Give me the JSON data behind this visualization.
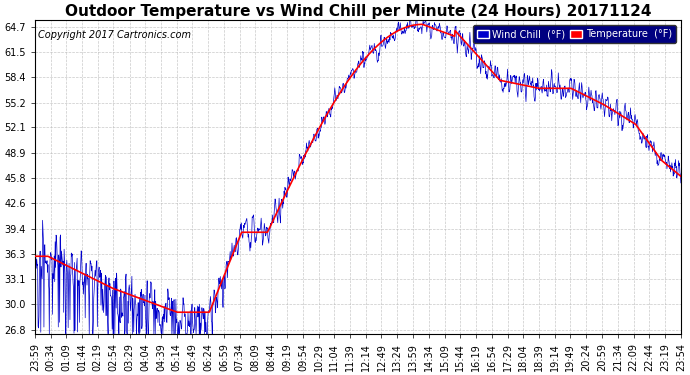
{
  "title": "Outdoor Temperature vs Wind Chill per Minute (24 Hours) 20171124",
  "copyright": "Copyright 2017 Cartronics.com",
  "yticks": [
    26.8,
    30.0,
    33.1,
    36.3,
    39.4,
    42.6,
    45.8,
    48.9,
    52.1,
    55.2,
    58.4,
    61.5,
    64.7
  ],
  "ylim_min": 26.3,
  "ylim_max": 65.5,
  "temp_color": "#ff0000",
  "wind_chill_color": "#0000cc",
  "bg_color": "#ffffff",
  "grid_color": "#bbbbbb",
  "legend_bg": "#000080",
  "title_fontsize": 11,
  "copyright_fontsize": 7,
  "tick_fontsize": 7,
  "xtick_labels": [
    "23:59",
    "00:34",
    "01:09",
    "01:44",
    "02:19",
    "02:54",
    "03:29",
    "04:04",
    "04:39",
    "05:14",
    "05:49",
    "06:24",
    "06:59",
    "07:34",
    "08:09",
    "08:44",
    "09:19",
    "09:54",
    "10:29",
    "11:04",
    "11:39",
    "12:14",
    "12:49",
    "13:24",
    "13:59",
    "14:34",
    "15:09",
    "15:44",
    "16:19",
    "16:54",
    "17:29",
    "18:04",
    "18:39",
    "19:14",
    "19:49",
    "20:24",
    "20:59",
    "21:34",
    "22:09",
    "22:44",
    "23:19",
    "23:54"
  ]
}
